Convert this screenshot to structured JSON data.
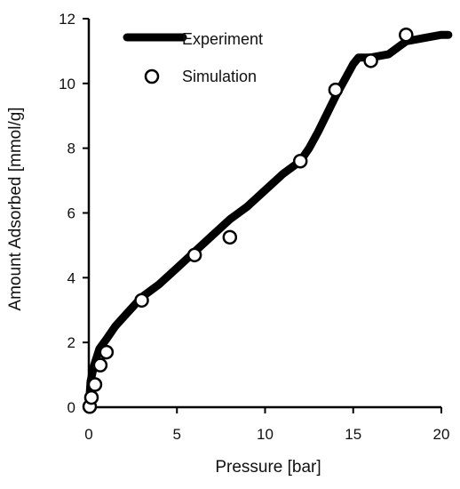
{
  "chart_data": {
    "type": "line",
    "title": "",
    "xlabel": "Pressure [bar]",
    "ylabel": "Amount Adsorbed [mmol/g]",
    "xlim": [
      0,
      20
    ],
    "ylim": [
      0,
      12
    ],
    "x_ticks": [
      0,
      5,
      10,
      15,
      20
    ],
    "y_ticks": [
      0,
      2,
      4,
      6,
      8,
      10,
      12
    ],
    "grid": false,
    "legend_position": "top-left",
    "series": [
      {
        "name": "Experiment",
        "style": "thick-line",
        "color": "#000000",
        "x": [
          0,
          0.1,
          0.3,
          0.6,
          1.0,
          1.5,
          2.0,
          3.0,
          4.0,
          5.0,
          6.0,
          7.0,
          8.0,
          9.0,
          10.0,
          11.0,
          12.0,
          12.5,
          13.0,
          14.0,
          15.0,
          15.3,
          16.0,
          17.0,
          18.0,
          19.0,
          20.0,
          20.4
        ],
        "y": [
          0.0,
          0.8,
          1.3,
          1.8,
          2.1,
          2.5,
          2.8,
          3.4,
          3.8,
          4.3,
          4.8,
          5.3,
          5.8,
          6.2,
          6.7,
          7.2,
          7.6,
          8.0,
          8.5,
          9.6,
          10.6,
          10.8,
          10.8,
          10.9,
          11.3,
          11.4,
          11.5,
          11.5
        ]
      },
      {
        "name": "Simulation",
        "style": "open-circle",
        "color": "#000000",
        "x": [
          0.05,
          0.15,
          0.35,
          0.65,
          1.0,
          3.0,
          6.0,
          8.0,
          12.0,
          14.0,
          16.0,
          18.0
        ],
        "y": [
          0.02,
          0.3,
          0.7,
          1.3,
          1.7,
          3.3,
          4.7,
          5.25,
          7.6,
          9.8,
          10.7,
          11.5
        ]
      }
    ]
  }
}
